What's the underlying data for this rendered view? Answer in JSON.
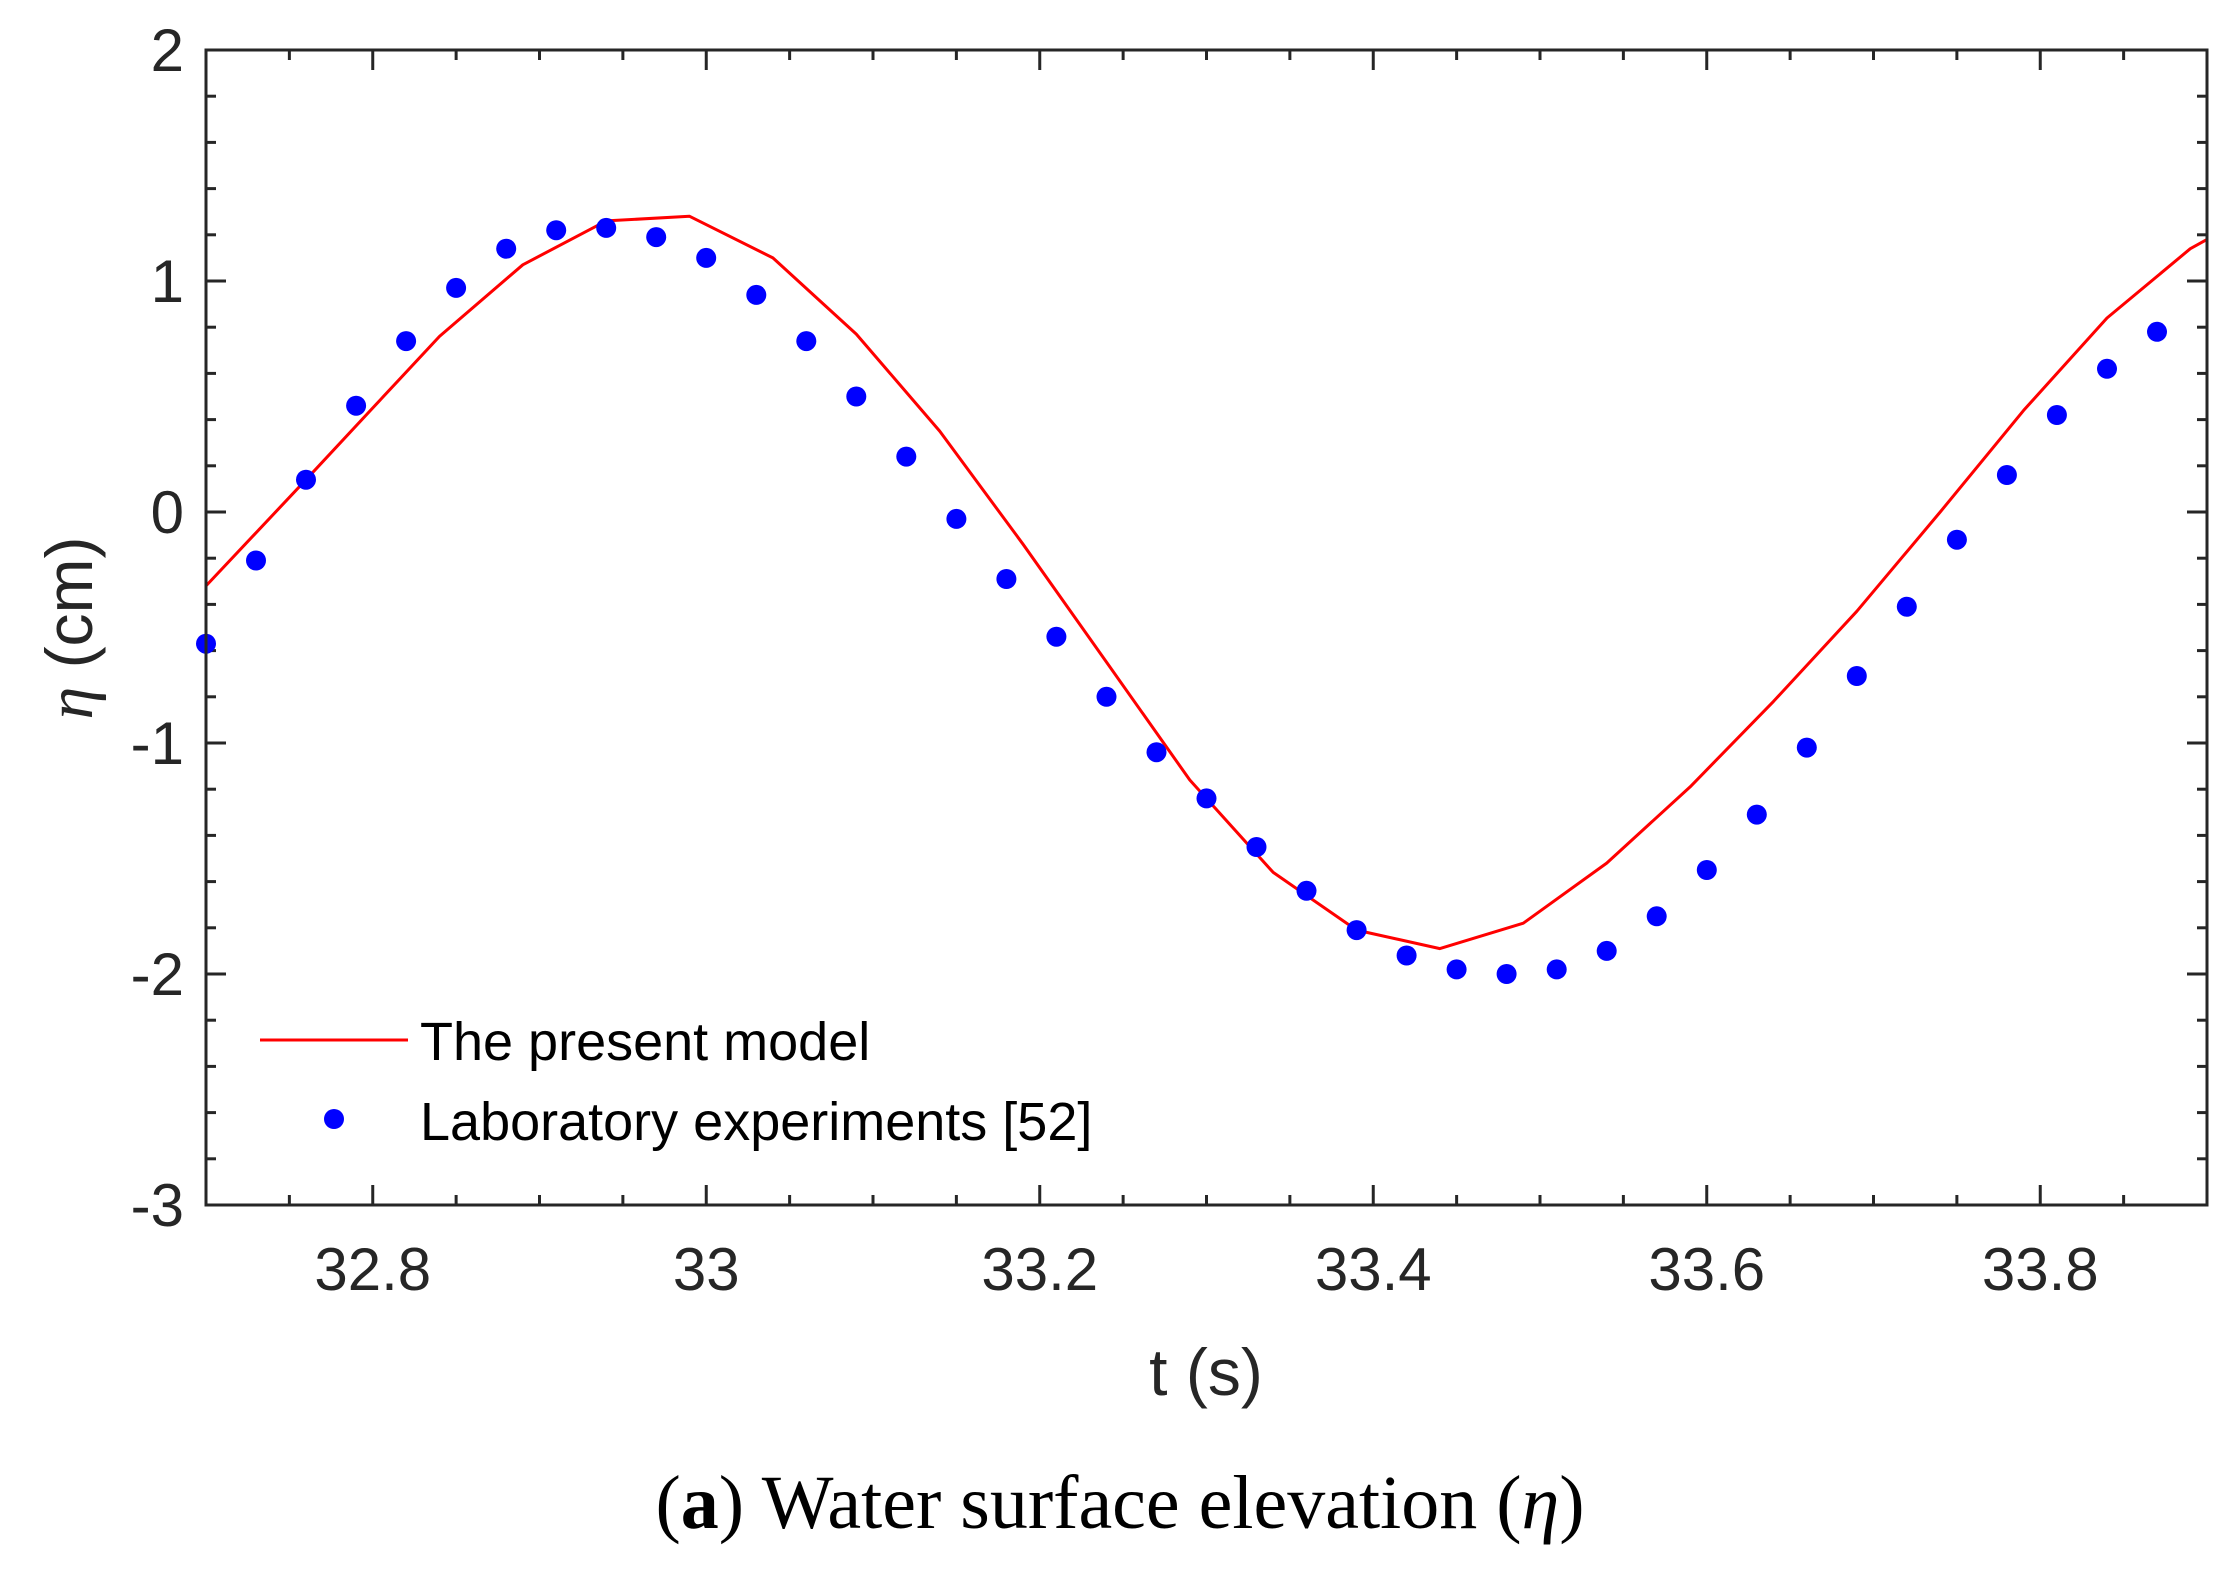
{
  "chart_data": {
    "type": "line",
    "xlabel": "t (s)",
    "ylabel_symbol": "η",
    "ylabel_unit": " (cm)",
    "xlim": [
      32.7,
      33.9
    ],
    "ylim": [
      -3,
      2
    ],
    "xticks": [
      32.8,
      33.0,
      33.2,
      33.4,
      33.6,
      33.8
    ],
    "xtick_labels": [
      "32.8",
      "33",
      "33.2",
      "33.4",
      "33.6",
      "33.8"
    ],
    "yticks": [
      2,
      1,
      0,
      -1,
      -2,
      -3
    ],
    "ytick_labels": [
      "2",
      "1",
      "0",
      "-1",
      "-2",
      "-3"
    ],
    "grid": false,
    "legend_position": "bottom-left",
    "series": [
      {
        "name": "The present model",
        "style": "line",
        "color": "#ff0000",
        "x": [
          32.7,
          32.76,
          32.8,
          32.84,
          32.89,
          32.94,
          32.99,
          33.04,
          33.09,
          33.14,
          33.19,
          33.24,
          33.29,
          33.34,
          33.39,
          33.44,
          33.49,
          33.54,
          33.59,
          33.64,
          33.69,
          33.74,
          33.79,
          33.84,
          33.89,
          33.9
        ],
        "y": [
          -0.32,
          0.14,
          0.45,
          0.76,
          1.07,
          1.26,
          1.28,
          1.1,
          0.77,
          0.35,
          -0.14,
          -0.65,
          -1.16,
          -1.56,
          -1.81,
          -1.89,
          -1.78,
          -1.52,
          -1.19,
          -0.82,
          -0.43,
          0.0,
          0.44,
          0.84,
          1.14,
          1.18
        ]
      },
      {
        "name": "Laboratory experiments [52]",
        "style": "markers",
        "color": "#0000ff",
        "x": [
          32.7,
          32.73,
          32.76,
          32.79,
          32.82,
          32.85,
          32.88,
          32.91,
          32.94,
          32.97,
          33.0,
          33.03,
          33.06,
          33.09,
          33.12,
          33.15,
          33.18,
          33.21,
          33.24,
          33.27,
          33.3,
          33.33,
          33.36,
          33.39,
          33.42,
          33.45,
          33.48,
          33.51,
          33.54,
          33.57,
          33.6,
          33.63,
          33.66,
          33.69,
          33.72,
          33.75,
          33.78,
          33.81,
          33.84,
          33.87
        ],
        "y": [
          -0.57,
          -0.21,
          0.14,
          0.46,
          0.74,
          0.97,
          1.14,
          1.22,
          1.23,
          1.19,
          1.1,
          0.94,
          0.74,
          0.5,
          0.24,
          -0.03,
          -0.29,
          -0.54,
          -0.8,
          -1.04,
          -1.24,
          -1.45,
          -1.64,
          -1.81,
          -1.92,
          -1.98,
          -2.0,
          -1.98,
          -1.9,
          -1.75,
          -1.55,
          -1.31,
          -1.02,
          -0.71,
          -0.41,
          -0.12,
          0.16,
          0.42,
          0.62,
          0.78
        ]
      }
    ]
  },
  "caption": {
    "letter": "a",
    "open_paren": "(",
    "close_paren": ")",
    "text": " Water surface elevation (",
    "symbol": "η",
    "end": ")"
  }
}
